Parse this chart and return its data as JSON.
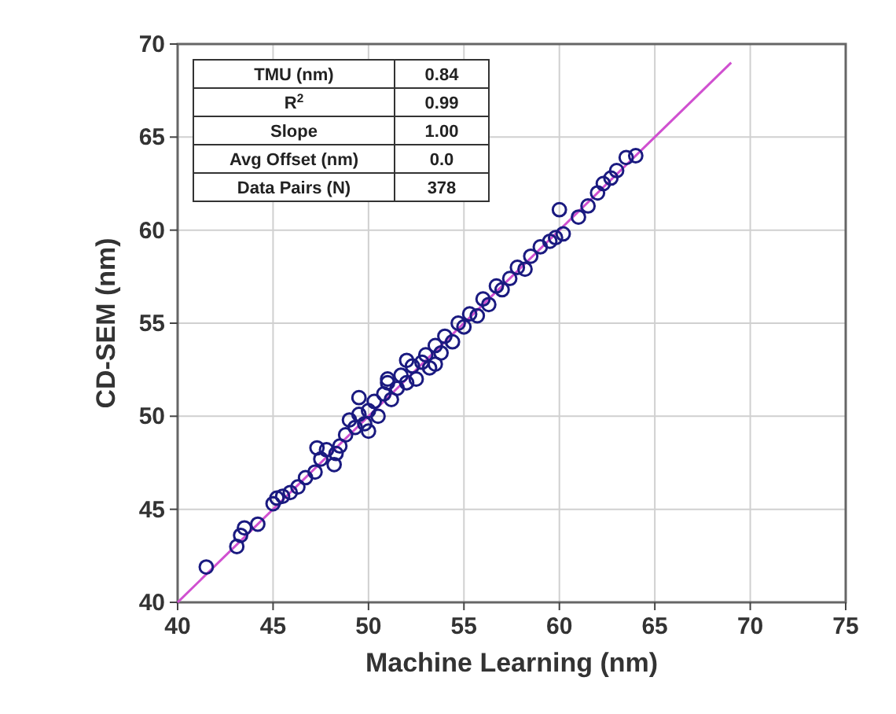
{
  "chart_data": {
    "type": "scatter",
    "xlabel": "Machine Learning (nm)",
    "ylabel": "CD-SEM (nm)",
    "xlim": [
      40,
      75
    ],
    "xticks": [
      40,
      45,
      50,
      55,
      60,
      65,
      70,
      75
    ],
    "ylim": [
      40,
      70
    ],
    "yticks": [
      40,
      45,
      50,
      55,
      60,
      65,
      70
    ],
    "grid": true,
    "marker": "circle",
    "annotations": [
      "TMU (nm)",
      "0.84",
      "R$^{2}$",
      "0.99",
      "Slope",
      "1.00",
      "Avg Offset (nm)",
      "0.0",
      "Data Pairs (N)",
      "378"
    ],
    "series": [
      {
        "color": "#1a1a80",
        "x": [
          41.5,
          43.1,
          43.3,
          43.5,
          44.2,
          45.0,
          45.2,
          45.5,
          45.9,
          46.3,
          46.7,
          47.2,
          47.5,
          47.3,
          47.8,
          48.2,
          48.3,
          48.5,
          48.8,
          49.0,
          49.3,
          49.5,
          49.8,
          50.0,
          49.5,
          50.3,
          50.5,
          50.8,
          51.0,
          51.2,
          51.5,
          51.7,
          52.0,
          52.3,
          52.5,
          52.8,
          53.0,
          53.2,
          53.5,
          53.8,
          54.0,
          54.4,
          54.7,
          55.0,
          55.3,
          55.7,
          56.0,
          56.3,
          56.7,
          57.0,
          57.4,
          57.8,
          58.2,
          58.5,
          59.0,
          59.5,
          60.0,
          60.2,
          61.0,
          61.5,
          62.0,
          62.3,
          62.7,
          63.0,
          63.5,
          64.0,
          59.8,
          51.0,
          52.0,
          50.0,
          53.5
        ],
        "values": [
          41.9,
          43.0,
          43.6,
          44.0,
          44.2,
          45.3,
          45.6,
          45.7,
          45.9,
          46.2,
          46.7,
          47.0,
          47.7,
          48.3,
          48.2,
          47.4,
          48.0,
          48.4,
          49.0,
          49.8,
          49.4,
          50.1,
          49.6,
          50.3,
          51.0,
          50.8,
          50.0,
          51.2,
          51.8,
          50.9,
          51.5,
          52.2,
          51.8,
          52.7,
          52.0,
          52.9,
          53.3,
          52.6,
          53.8,
          53.4,
          54.3,
          54.0,
          55.0,
          54.8,
          55.5,
          55.4,
          56.3,
          56.0,
          57.0,
          56.8,
          57.4,
          58.0,
          57.9,
          58.6,
          59.1,
          59.4,
          61.1,
          59.8,
          60.7,
          61.3,
          62.0,
          62.5,
          62.8,
          63.2,
          63.9,
          64.0,
          59.6,
          52.0,
          53.0,
          49.2,
          52.8
        ]
      },
      {
        "type": "line",
        "marker": "none",
        "color": "#d050d0",
        "x": [
          40,
          69
        ],
        "values": [
          40,
          69
        ]
      }
    ]
  }
}
